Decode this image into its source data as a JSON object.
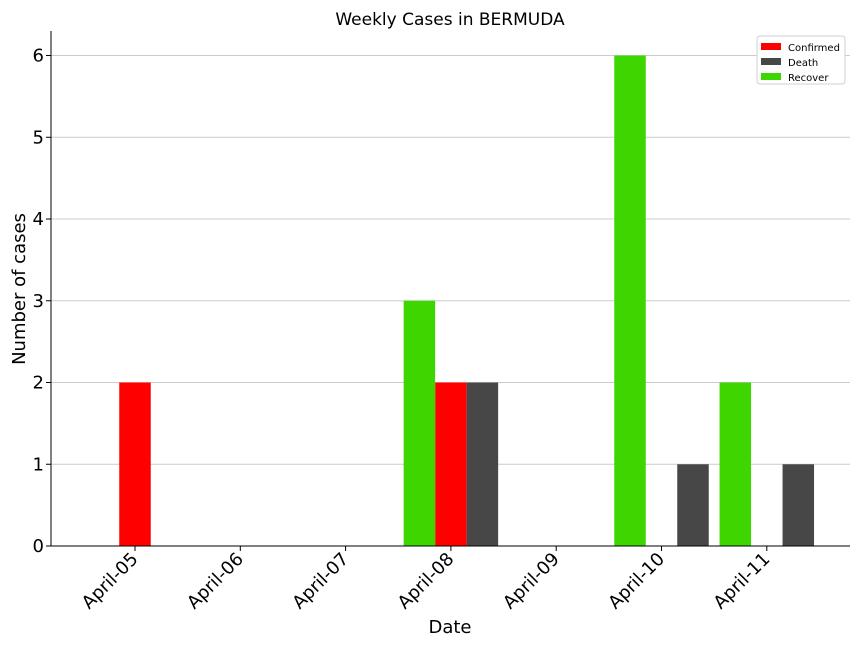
{
  "chart_data": {
    "type": "bar",
    "title": "Weekly Cases in BERMUDA",
    "xlabel": "Date",
    "ylabel": "Number of cases",
    "categories": [
      "April-05",
      "April-06",
      "April-07",
      "April-08",
      "April-09",
      "April-10",
      "April-11"
    ],
    "series": [
      {
        "name": "Confirmed",
        "color": "#ff0000",
        "values": [
          2,
          0,
          0,
          2,
          0,
          0,
          0
        ]
      },
      {
        "name": "Death",
        "color": "#474747",
        "values": [
          0,
          0,
          0,
          2,
          0,
          1,
          1
        ]
      },
      {
        "name": "Recover",
        "color": "#3dd600",
        "values": [
          0,
          0,
          0,
          3,
          0,
          6,
          2
        ]
      }
    ],
    "ylim": [
      0,
      6.3
    ],
    "yticks": [
      0,
      1,
      2,
      3,
      4,
      5,
      6
    ],
    "grid": "horizontal",
    "legend_position": "top-right"
  }
}
